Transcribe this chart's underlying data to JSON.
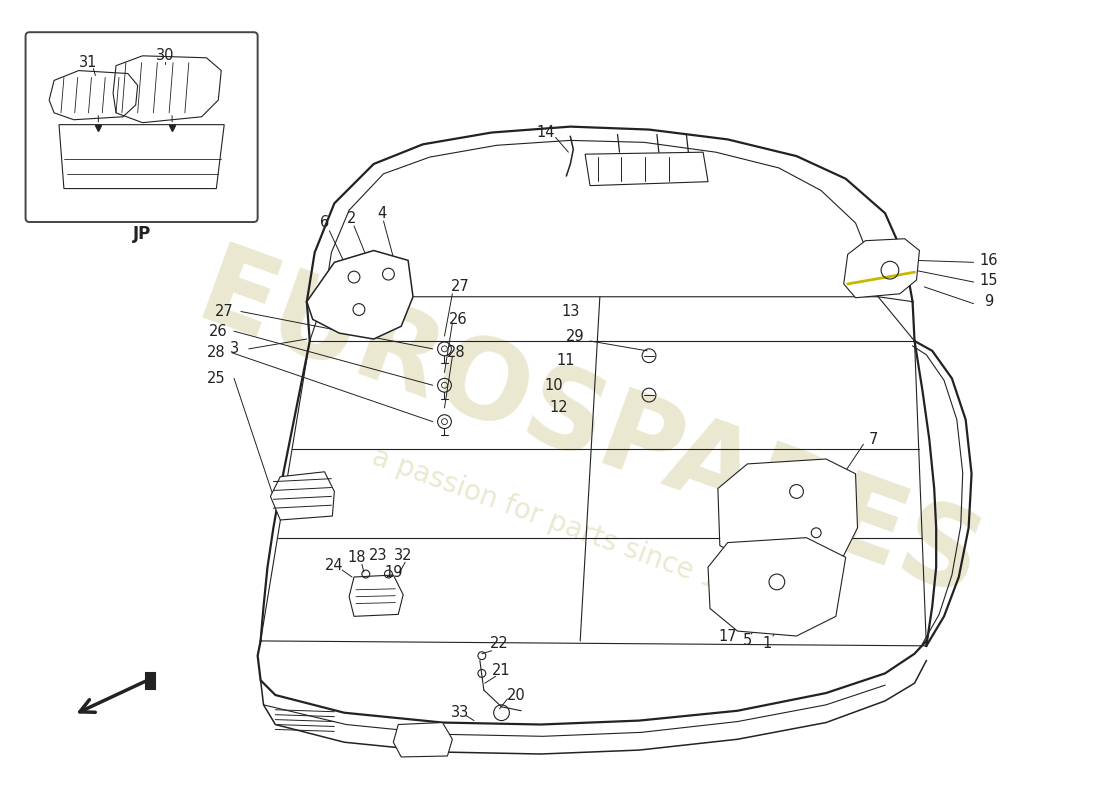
{
  "bg_color": "#ffffff",
  "line_color": "#222222",
  "watermark_text1": "EUROSPARES",
  "watermark_text2": "a passion for parts since 1985",
  "jp_label": "JP",
  "label_font_size": 10.5,
  "watermark_color": "#d4cc99",
  "watermark_alpha": 0.45,
  "figsize": [
    11.0,
    8.0
  ],
  "dpi": 100
}
